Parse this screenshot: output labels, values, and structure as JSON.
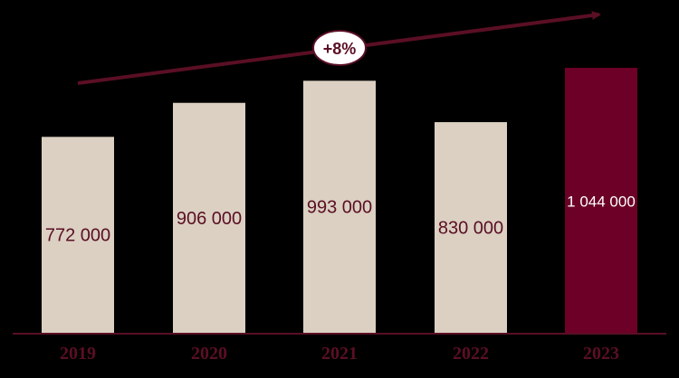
{
  "chart_data": {
    "type": "bar",
    "categories": [
      "2019",
      "2020",
      "2021",
      "2022",
      "2023"
    ],
    "values": [
      772000,
      906000,
      993000,
      830000,
      1044000
    ],
    "value_labels": [
      "772 000",
      "906 000",
      "993 000",
      "830 000",
      "1 044 000"
    ],
    "highlight_index": 4,
    "ylim": [
      0,
      1044000
    ],
    "grid": false,
    "legend": "none",
    "annotation": {
      "text": "+8%",
      "type": "growth-arrow"
    },
    "colors": {
      "background": "#000000",
      "bar": "#DBD0C2",
      "highlight_bar": "#6C0026",
      "label_dark": "#5A0F24",
      "label_light": "#FFFFFF",
      "axis_line": "#5A0F24",
      "arrow": "#5A0F24",
      "annotation_fill": "#FFFFFF"
    }
  }
}
